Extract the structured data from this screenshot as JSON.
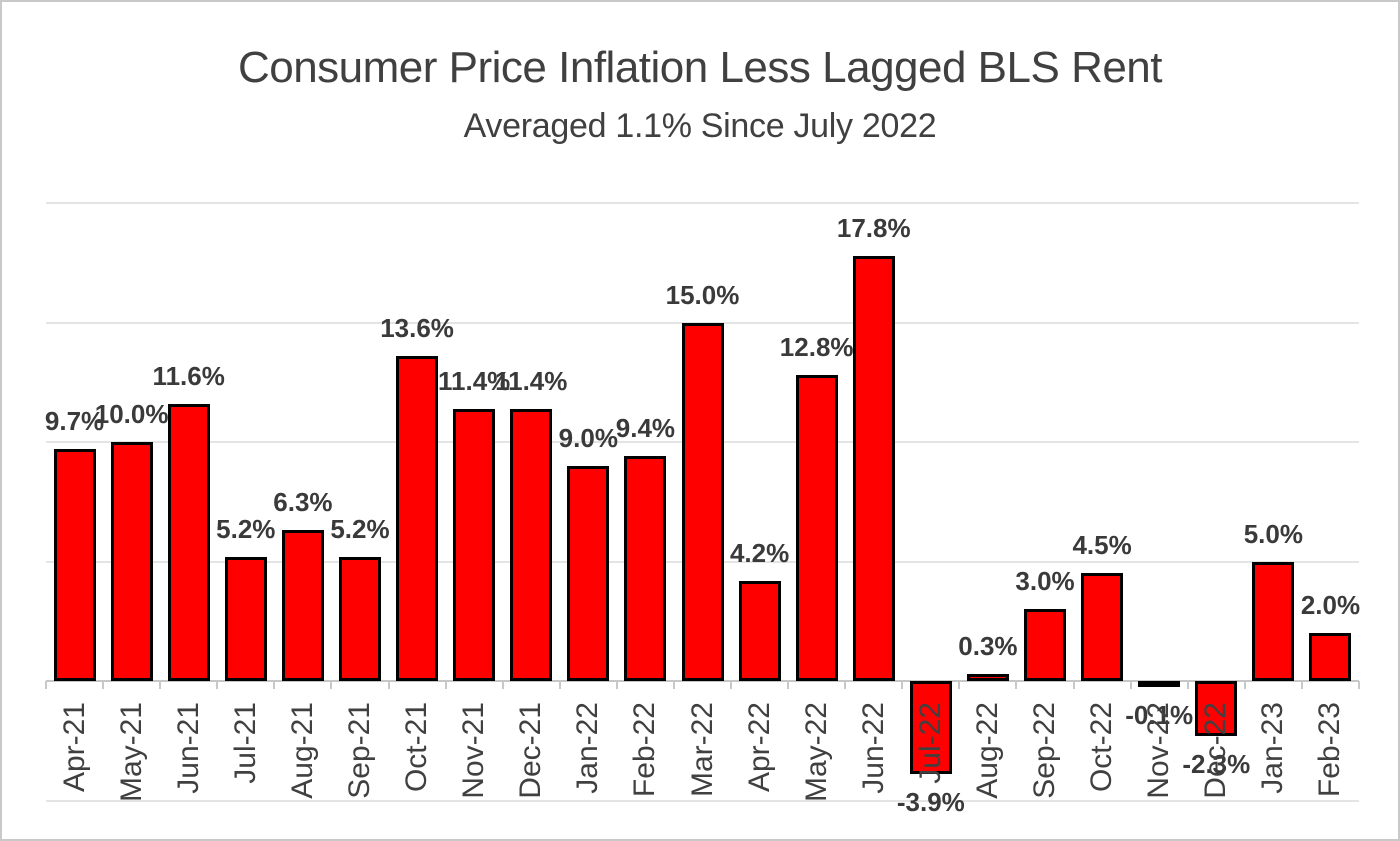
{
  "window": {
    "background_color": "#ffffff",
    "border_color": "#c9c9c9"
  },
  "chart_data": {
    "type": "bar",
    "title": "Consumer Price Inflation Less Lagged BLS Rent",
    "subtitle": "Averaged 1.1% Since July 2022",
    "xlabel": "",
    "ylabel": "",
    "legend": "none",
    "grid_on": true,
    "ylim": [
      -5,
      20
    ],
    "gridline_step_pct": 5,
    "categories": [
      "Apr-21",
      "May-21",
      "Jun-21",
      "Jul-21",
      "Aug-21",
      "Sep-21",
      "Oct-21",
      "Nov-21",
      "Dec-21",
      "Jan-22",
      "Feb-22",
      "Mar-22",
      "Apr-22",
      "May-22",
      "Jun-22",
      "Jul-22",
      "Aug-22",
      "Sep-22",
      "Oct-22",
      "Nov-22",
      "Dec-22",
      "Jan-23",
      "Feb-23"
    ],
    "values": [
      9.7,
      10.0,
      11.6,
      5.2,
      6.3,
      5.2,
      13.6,
      11.4,
      11.4,
      9.0,
      9.4,
      15.0,
      4.2,
      12.8,
      17.8,
      -3.9,
      0.3,
      3.0,
      4.5,
      -0.1,
      -2.3,
      5.0,
      2.0
    ],
    "data_labels": [
      "9.7%",
      "10.0%",
      "11.6%",
      "5.2%",
      "6.3%",
      "5.2%",
      "13.6%",
      "11.4%",
      "11.4%",
      "9.0%",
      "9.4%",
      "15.0%",
      "4.2%",
      "12.8%",
      "17.8%",
      "-3.9%",
      "0.3%",
      "3.0%",
      "4.5%",
      "-0.1%",
      "-2.3%",
      "5.0%",
      "2.0%"
    ],
    "x_label_rotation_deg": -90,
    "colors": {
      "bar_fill": "#ff0000",
      "bar_border": "#000000",
      "gridline": "#e4e4e4",
      "axis_line": "#c6c6c6",
      "tick": "#c9c9c9",
      "title_text": "#404040",
      "label_text": "#3a3a3a",
      "axis_text": "#404040"
    }
  }
}
